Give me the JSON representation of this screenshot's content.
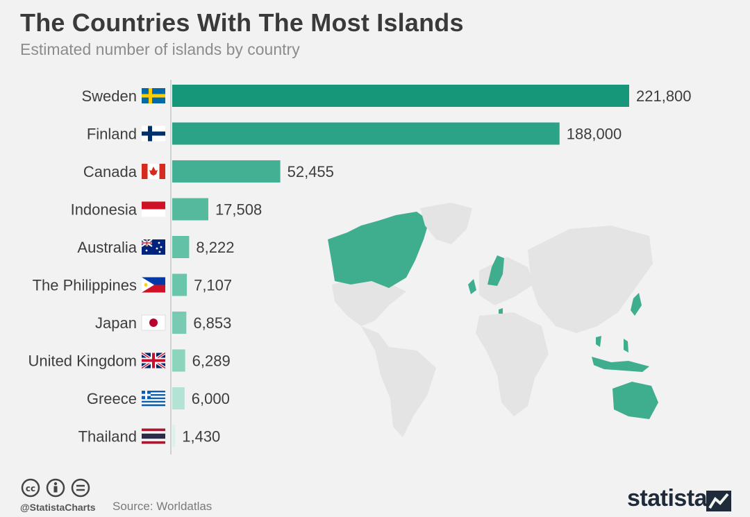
{
  "header": {
    "title": "The Countries With The Most Islands",
    "subtitle": "Estimated number of islands by country"
  },
  "footer": {
    "handle": "@StatistaCharts",
    "source": "Source: Worldatlas",
    "brand": "statista"
  },
  "chart_data": {
    "type": "bar",
    "orientation": "horizontal",
    "title": "The Countries With The Most Islands",
    "subtitle": "Estimated number of islands by country",
    "categories": [
      "Sweden",
      "Finland",
      "Canada",
      "Indonesia",
      "Australia",
      "The Philippines",
      "Japan",
      "United Kingdom",
      "Greece",
      "Thailand"
    ],
    "values": [
      221800,
      188000,
      52455,
      17508,
      8222,
      7107,
      6853,
      6289,
      6000,
      1430
    ],
    "value_labels": [
      "221,800",
      "188,000",
      "52,455",
      "17,508",
      "8,222",
      "7,107",
      "6,853",
      "6,289",
      "6,000",
      "1,430"
    ],
    "flags": [
      "sweden-flag",
      "finland-flag",
      "canada-flag",
      "indonesia-flag",
      "australia-flag",
      "philippines-flag",
      "japan-flag",
      "uk-flag",
      "greece-flag",
      "thailand-flag"
    ],
    "bar_colors": [
      "#16977a",
      "#2aa387",
      "#44b093",
      "#55b99d",
      "#63c1a6",
      "#6bc5ab",
      "#78cbb2",
      "#8dd4bd",
      "#b3e3d4",
      "#dcf1ea"
    ],
    "highlight_color": "#3fae8e",
    "xlim": [
      0,
      221800
    ],
    "grid": false,
    "legend": "none"
  }
}
